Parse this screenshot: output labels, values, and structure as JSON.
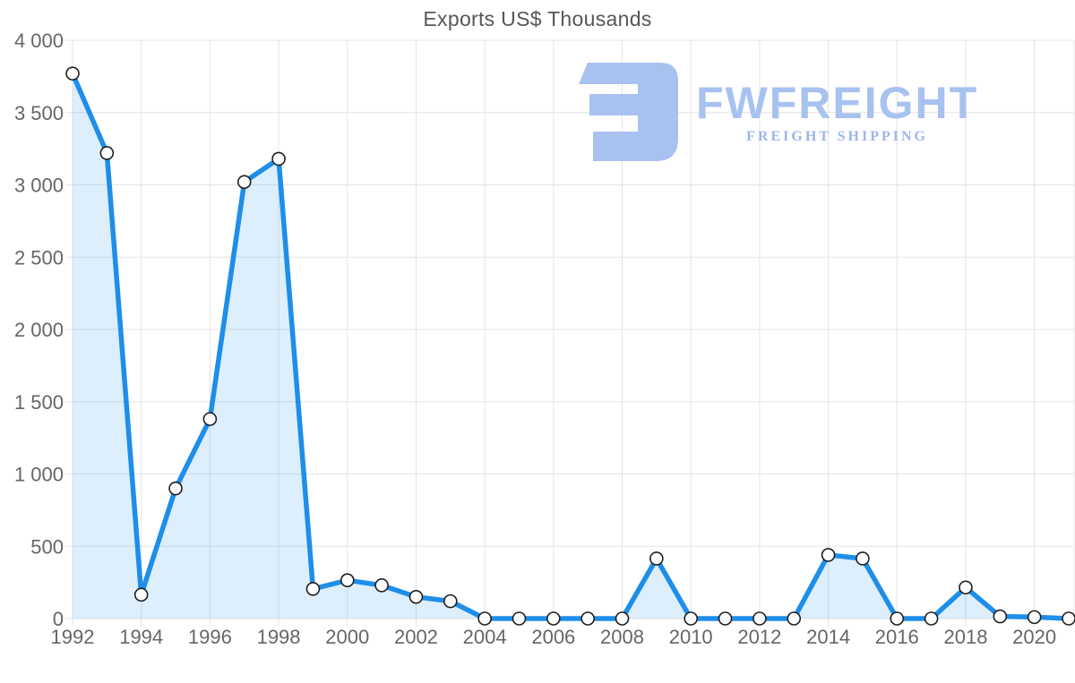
{
  "title": "Exports US$ Thousands",
  "logo": {
    "name": "FWFREIGHT",
    "tagline": "FREIGHT SHIPPING",
    "color": "#a8c2f0",
    "tagline_color": "#9db5ec"
  },
  "chart_data": {
    "type": "area",
    "title": "Exports US$ Thousands",
    "xlabel": "",
    "ylabel": "Exports US$ Thousands",
    "x": [
      1992,
      1993,
      1994,
      1995,
      1996,
      1997,
      1998,
      1999,
      2000,
      2001,
      2002,
      2003,
      2004,
      2005,
      2006,
      2007,
      2008,
      2009,
      2010,
      2011,
      2012,
      2013,
      2014,
      2015,
      2016,
      2017,
      2018,
      2019,
      2020,
      2021
    ],
    "values": [
      3770,
      3220,
      165,
      900,
      1380,
      3020,
      3180,
      205,
      265,
      230,
      150,
      120,
      0,
      0,
      0,
      0,
      0,
      415,
      0,
      0,
      0,
      0,
      440,
      415,
      0,
      0,
      215,
      15,
      10,
      0
    ],
    "ylim": [
      0,
      4000
    ],
    "xlim": [
      1992,
      2021
    ],
    "grid": true,
    "legend": "none",
    "y_ticks": [
      0,
      500,
      1000,
      1500,
      2000,
      2500,
      3000,
      3500,
      4000
    ],
    "y_tick_labels": [
      "0",
      "500",
      "1 000",
      "1 500",
      "2 000",
      "2 500",
      "3 000",
      "3 500",
      "4 000"
    ],
    "x_ticks": [
      1992,
      1994,
      1996,
      1998,
      2000,
      2002,
      2004,
      2006,
      2008,
      2010,
      2012,
      2014,
      2016,
      2018,
      2020
    ],
    "x_tick_labels": [
      "1992",
      "1994",
      "1996",
      "1998",
      "2000",
      "2002",
      "2004",
      "2006",
      "2008",
      "2010",
      "2012",
      "2014",
      "2016",
      "2018",
      "2020"
    ],
    "line_color": "#1e8ee9",
    "line_width": 5.5,
    "fill_color": "rgba(30,142,233,0.15)",
    "marker": {
      "radius": 7,
      "fill": "#ffffff",
      "stroke": "#1f1f1f",
      "stroke_width": 1.6
    }
  }
}
